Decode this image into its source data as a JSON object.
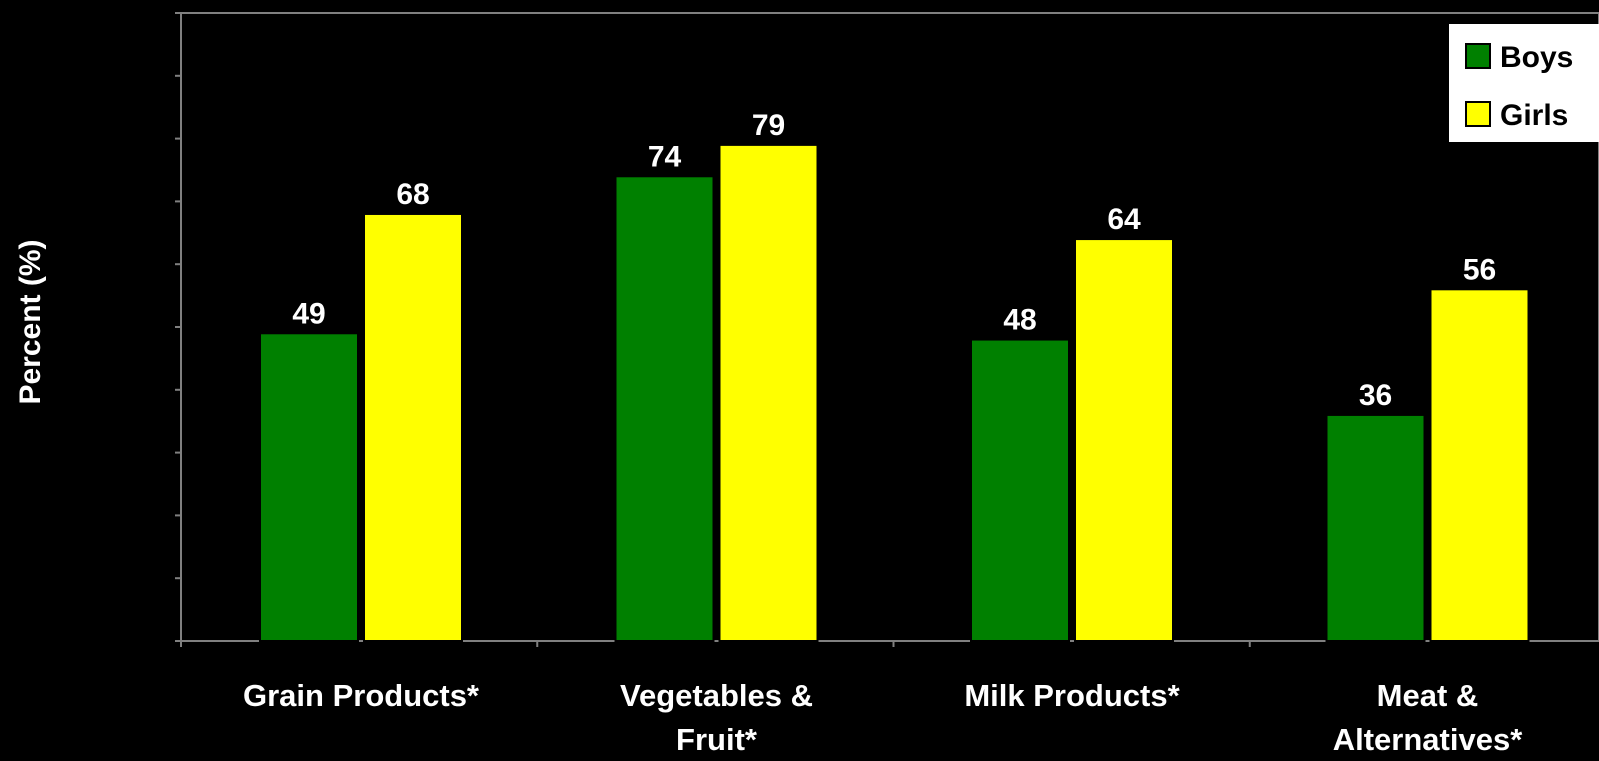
{
  "chart_data": {
    "type": "bar",
    "title": "",
    "ylabel": "Percent (%)",
    "xlabel": "",
    "ylim": [
      0,
      100
    ],
    "grid": false,
    "legend_position": "top-right",
    "categories": [
      [
        "Grain Products*"
      ],
      [
        "Vegetables &",
        "Fruit*"
      ],
      [
        "Milk Products*"
      ],
      [
        "Meat &",
        "Alternatives*"
      ]
    ],
    "series": [
      {
        "name": "Boys",
        "color": "#008000",
        "values": [
          49,
          74,
          48,
          36
        ]
      },
      {
        "name": "Girls",
        "color": "#FFFF00",
        "values": [
          68,
          79,
          64,
          56
        ]
      }
    ],
    "colors": {
      "background": "#000000",
      "text": "#FFFFFF",
      "axis": "#808080",
      "legend_bg": "#FFFFFF",
      "legend_text": "#000000"
    }
  }
}
